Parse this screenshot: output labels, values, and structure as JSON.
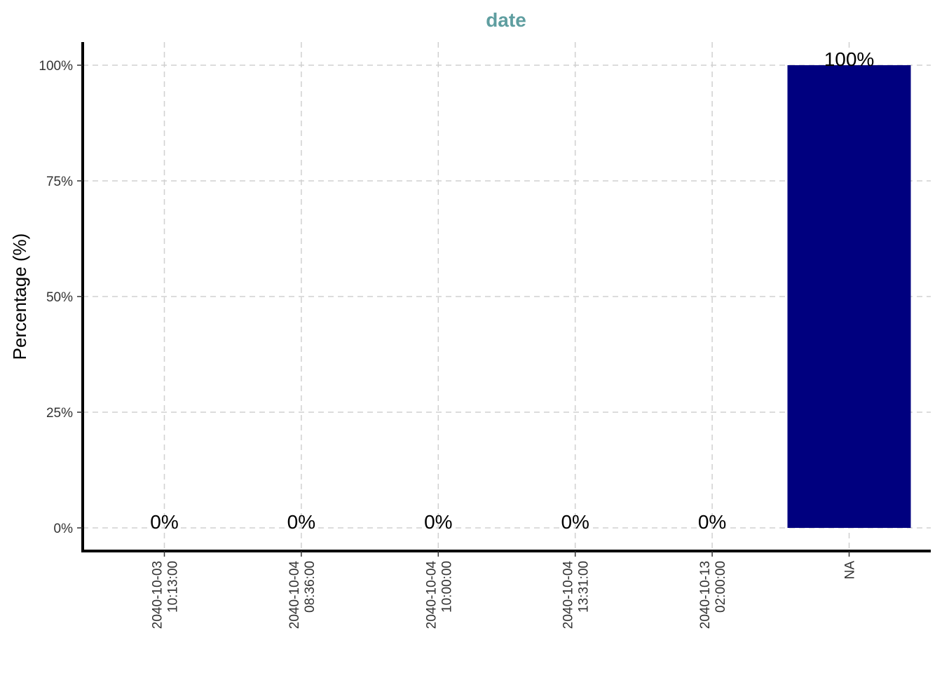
{
  "chart_data": {
    "type": "bar",
    "title": "date",
    "xlabel": "",
    "ylabel": "Percentage (%)",
    "categories": [
      [
        "2040-10-03",
        "10:13:00"
      ],
      [
        "2040-10-04",
        "08:36:00"
      ],
      [
        "2040-10-04",
        "10:00:00"
      ],
      [
        "2040-10-04",
        "13:31:00"
      ],
      [
        "2040-10-13",
        "02:00:00"
      ],
      [
        "NA"
      ]
    ],
    "values": [
      0,
      0,
      0,
      0,
      0,
      100
    ],
    "data_labels": [
      "0%",
      "0%",
      "0%",
      "0%",
      "0%",
      "100%"
    ],
    "ylim": [
      -5,
      105
    ],
    "yticks": [
      0,
      25,
      50,
      75,
      100
    ],
    "ytick_labels": [
      "0%",
      "25%",
      "50%",
      "75%",
      "100%"
    ],
    "grid": true,
    "legend": "none",
    "colors": {
      "bar": "#00007F",
      "title": "#5F9EA0"
    }
  }
}
